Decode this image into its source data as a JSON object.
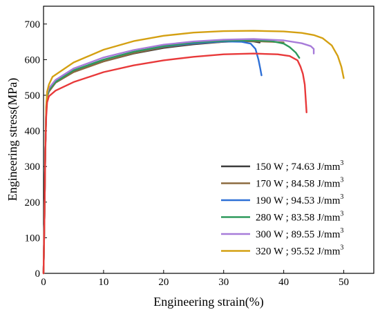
{
  "chart_data": {
    "type": "line",
    "xlabel": "Engineering strain(%)",
    "ylabel": "Engineering stress(MPa)",
    "xlim": [
      0,
      55
    ],
    "ylim": [
      0,
      750
    ],
    "xticks": [
      0,
      10,
      20,
      30,
      40,
      50
    ],
    "yticks": [
      0,
      100,
      200,
      300,
      400,
      500,
      600,
      700
    ],
    "grid": false,
    "legend_position": "bottom-right",
    "legend_unit_superscript": "3",
    "series": [
      {
        "name": "150 W ; 74.63 J/mm",
        "color": "#3a3a3a",
        "points": [
          [
            0,
            0
          ],
          [
            0.15,
            150
          ],
          [
            0.3,
            350
          ],
          [
            0.45,
            460
          ],
          [
            0.6,
            500
          ],
          [
            0.9,
            515
          ],
          [
            2,
            537
          ],
          [
            5,
            567
          ],
          [
            10,
            595
          ],
          [
            15,
            617
          ],
          [
            20,
            633
          ],
          [
            25,
            643
          ],
          [
            30,
            650
          ],
          [
            33,
            652
          ],
          [
            35,
            651
          ],
          [
            36,
            648
          ]
        ]
      },
      {
        "name": "170 W ; 84.58 J/mm",
        "color": "#8b6a3e",
        "points": [
          [
            0,
            0
          ],
          [
            0.15,
            150
          ],
          [
            0.3,
            350
          ],
          [
            0.45,
            455
          ],
          [
            0.6,
            495
          ],
          [
            0.9,
            510
          ],
          [
            2,
            535
          ],
          [
            5,
            565
          ],
          [
            10,
            595
          ],
          [
            15,
            618
          ],
          [
            20,
            635
          ],
          [
            25,
            645
          ],
          [
            30,
            650
          ],
          [
            35,
            652
          ],
          [
            38,
            650
          ],
          [
            40,
            648
          ]
        ]
      },
      {
        "name": "190 W ; 94.53 J/mm",
        "color": "#2d6fd6",
        "points": [
          [
            0,
            0
          ],
          [
            0.15,
            150
          ],
          [
            0.3,
            350
          ],
          [
            0.45,
            460
          ],
          [
            0.6,
            500
          ],
          [
            0.9,
            515
          ],
          [
            2,
            538
          ],
          [
            5,
            570
          ],
          [
            10,
            600
          ],
          [
            15,
            622
          ],
          [
            20,
            637
          ],
          [
            25,
            646
          ],
          [
            30,
            651
          ],
          [
            33,
            650
          ],
          [
            34.5,
            645
          ],
          [
            35.3,
            630
          ],
          [
            35.8,
            600
          ],
          [
            36.1,
            575
          ],
          [
            36.3,
            556
          ]
        ]
      },
      {
        "name": "280 W ; 83.58 J/mm",
        "color": "#2e9a5c",
        "points": [
          [
            0,
            0
          ],
          [
            0.15,
            150
          ],
          [
            0.3,
            350
          ],
          [
            0.45,
            460
          ],
          [
            0.6,
            500
          ],
          [
            0.9,
            515
          ],
          [
            2,
            537
          ],
          [
            5,
            570
          ],
          [
            10,
            600
          ],
          [
            15,
            622
          ],
          [
            20,
            638
          ],
          [
            25,
            648
          ],
          [
            30,
            653
          ],
          [
            35,
            654
          ],
          [
            38,
            652
          ],
          [
            40,
            645
          ],
          [
            41,
            635
          ],
          [
            42,
            620
          ],
          [
            42.6,
            605
          ]
        ]
      },
      {
        "name": "300 W ; 89.55 J/mm",
        "color": "#a77bd9",
        "points": [
          [
            0,
            0
          ],
          [
            0.15,
            150
          ],
          [
            0.3,
            350
          ],
          [
            0.45,
            465
          ],
          [
            0.6,
            505
          ],
          [
            0.9,
            520
          ],
          [
            2,
            543
          ],
          [
            5,
            575
          ],
          [
            10,
            606
          ],
          [
            15,
            627
          ],
          [
            20,
            642
          ],
          [
            25,
            651
          ],
          [
            30,
            656
          ],
          [
            35,
            658
          ],
          [
            40,
            654
          ],
          [
            43,
            646
          ],
          [
            44.5,
            638
          ],
          [
            45,
            630
          ],
          [
            45,
            617
          ]
        ]
      },
      {
        "name": "320 W ; 95.52 J/mm",
        "color": "#d4a012",
        "points": [
          [
            0,
            0
          ],
          [
            0.15,
            150
          ],
          [
            0.3,
            350
          ],
          [
            0.45,
            470
          ],
          [
            0.6,
            510
          ],
          [
            0.9,
            530
          ],
          [
            1.5,
            552
          ],
          [
            5,
            592
          ],
          [
            10,
            628
          ],
          [
            15,
            652
          ],
          [
            20,
            667
          ],
          [
            25,
            676
          ],
          [
            30,
            680
          ],
          [
            35,
            681
          ],
          [
            40,
            679
          ],
          [
            43,
            675
          ],
          [
            45,
            669
          ],
          [
            46.5,
            660
          ],
          [
            48,
            640
          ],
          [
            49,
            610
          ],
          [
            49.6,
            580
          ],
          [
            50,
            548
          ]
        ]
      },
      {
        "name": "",
        "color": "#e8393a",
        "points": [
          [
            0,
            0
          ],
          [
            0.15,
            150
          ],
          [
            0.3,
            340
          ],
          [
            0.45,
            440
          ],
          [
            0.6,
            480
          ],
          [
            0.9,
            497
          ],
          [
            2,
            513
          ],
          [
            5,
            537
          ],
          [
            10,
            565
          ],
          [
            15,
            584
          ],
          [
            20,
            598
          ],
          [
            25,
            608
          ],
          [
            30,
            615
          ],
          [
            35,
            617
          ],
          [
            39,
            615
          ],
          [
            41,
            610
          ],
          [
            42.3,
            598
          ],
          [
            42.8,
            580
          ],
          [
            43.2,
            560
          ],
          [
            43.5,
            530
          ],
          [
            43.7,
            480
          ],
          [
            43.8,
            452
          ]
        ]
      }
    ]
  }
}
